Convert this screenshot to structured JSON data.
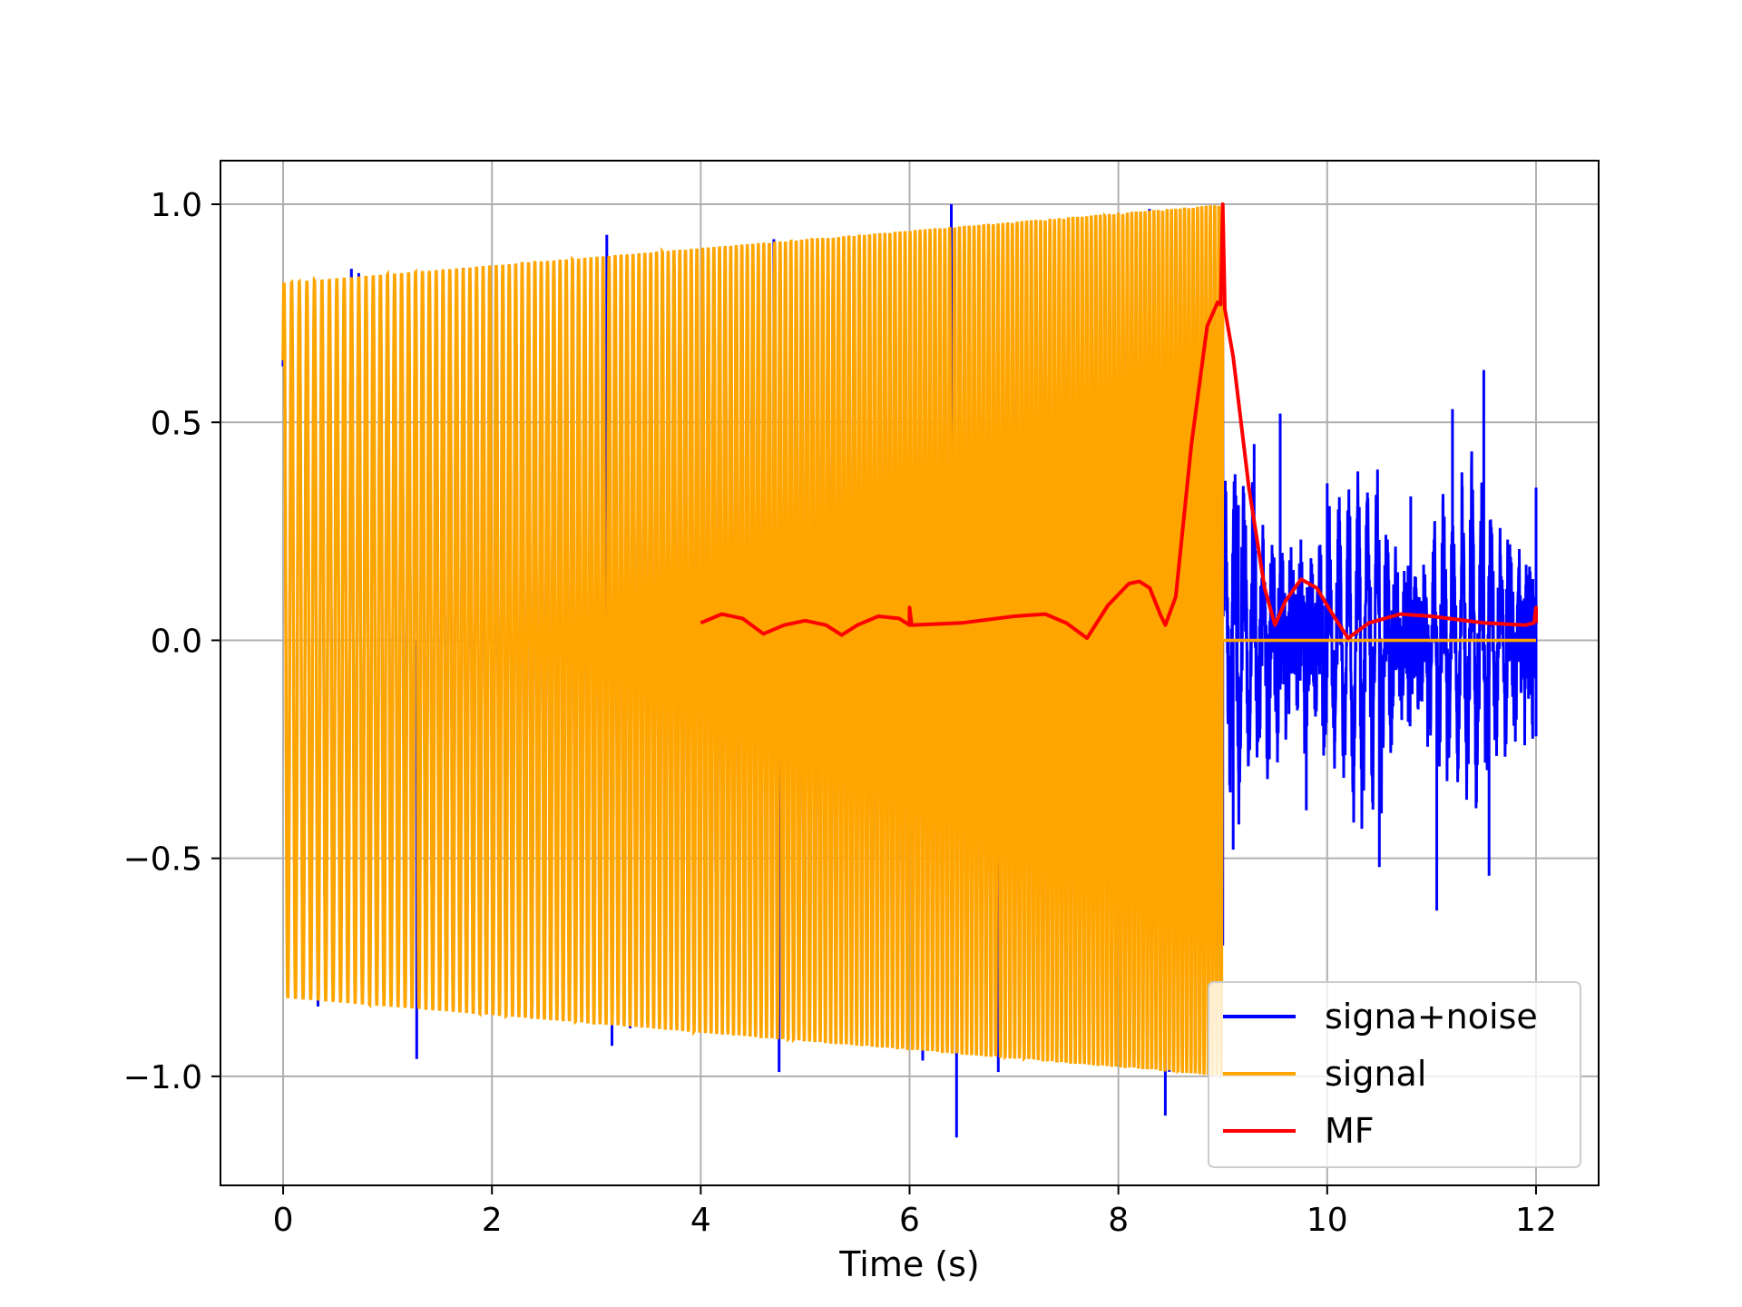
{
  "chart_data": {
    "type": "line",
    "title": "",
    "xlabel": "Time (s)",
    "ylabel": "",
    "xlim": [
      -0.6,
      12.6
    ],
    "ylim": [
      -1.25,
      1.1
    ],
    "xticks": [
      0,
      2,
      4,
      6,
      8,
      10,
      12
    ],
    "xtick_labels": [
      "0",
      "2",
      "4",
      "6",
      "8",
      "10",
      "12"
    ],
    "yticks": [
      -1.0,
      -0.5,
      0.0,
      0.5,
      1.0
    ],
    "ytick_labels": [
      "−1.0",
      "−0.5",
      "0.0",
      "0.5",
      "1.0"
    ],
    "grid": true,
    "legend_position": "lower-right",
    "series": [
      {
        "name": "signa+noise",
        "color": "#0000ff",
        "description_values": "noisy chirp 0–9 s (amplitude ≈1.0), noise only 9–12 s (amplitude ≈0.6)",
        "points": [
          [
            0.0,
            0.0
          ],
          [
            1.28,
            -0.96
          ],
          [
            3.1,
            0.93
          ],
          [
            3.15,
            -0.93
          ],
          [
            4.7,
            0.92
          ],
          [
            4.75,
            -0.99
          ],
          [
            6.4,
            1.0
          ],
          [
            6.45,
            -1.14
          ],
          [
            6.8,
            0.85
          ],
          [
            6.85,
            -0.99
          ],
          [
            8.45,
            -1.09
          ],
          [
            9.0,
            -0.7
          ],
          [
            9.1,
            -0.48
          ],
          [
            9.15,
            0.31
          ],
          [
            9.3,
            0.45
          ],
          [
            9.55,
            0.52
          ],
          [
            9.8,
            -0.39
          ],
          [
            10.0,
            0.36
          ],
          [
            10.5,
            -0.52
          ],
          [
            10.8,
            0.33
          ],
          [
            11.05,
            -0.62
          ],
          [
            11.2,
            0.53
          ],
          [
            11.5,
            0.62
          ],
          [
            11.55,
            -0.54
          ],
          [
            11.75,
            0.22
          ],
          [
            12.0,
            0.35
          ],
          [
            12.0,
            -0.22
          ]
        ]
      },
      {
        "name": "signal",
        "color": "#ffa500",
        "envelope_start": 0.82,
        "envelope_end": 1.0,
        "t_start": 0.0,
        "t_end": 9.0,
        "after_value": 0.0,
        "t_after_end": 12.0
      },
      {
        "name": "MF",
        "color": "#ff0000",
        "points": [
          [
            4.0,
            0.04
          ],
          [
            4.2,
            0.06
          ],
          [
            4.4,
            0.05
          ],
          [
            4.6,
            0.015
          ],
          [
            4.8,
            0.035
          ],
          [
            5.0,
            0.045
          ],
          [
            5.2,
            0.035
          ],
          [
            5.35,
            0.012
          ],
          [
            5.5,
            0.035
          ],
          [
            5.7,
            0.055
          ],
          [
            5.9,
            0.05
          ],
          [
            6.0,
            0.035
          ],
          [
            6.0,
            0.075
          ],
          [
            6.02,
            0.035
          ],
          [
            6.5,
            0.04
          ],
          [
            7.0,
            0.055
          ],
          [
            7.3,
            0.06
          ],
          [
            7.5,
            0.04
          ],
          [
            7.7,
            0.005
          ],
          [
            7.9,
            0.08
          ],
          [
            8.1,
            0.13
          ],
          [
            8.2,
            0.135
          ],
          [
            8.3,
            0.12
          ],
          [
            8.4,
            0.06
          ],
          [
            8.45,
            0.035
          ],
          [
            8.55,
            0.1
          ],
          [
            8.7,
            0.45
          ],
          [
            8.85,
            0.72
          ],
          [
            8.95,
            0.775
          ],
          [
            8.98,
            0.77
          ],
          [
            9.0,
            1.0
          ],
          [
            9.02,
            0.76
          ],
          [
            9.1,
            0.65
          ],
          [
            9.25,
            0.35
          ],
          [
            9.4,
            0.12
          ],
          [
            9.5,
            0.035
          ],
          [
            9.6,
            0.09
          ],
          [
            9.75,
            0.14
          ],
          [
            9.9,
            0.12
          ],
          [
            10.05,
            0.06
          ],
          [
            10.2,
            0.005
          ],
          [
            10.4,
            0.04
          ],
          [
            10.7,
            0.06
          ],
          [
            11.0,
            0.055
          ],
          [
            11.5,
            0.04
          ],
          [
            11.9,
            0.035
          ],
          [
            11.98,
            0.04
          ],
          [
            12.0,
            0.075
          ],
          [
            12.0,
            0.04
          ]
        ]
      }
    ]
  }
}
